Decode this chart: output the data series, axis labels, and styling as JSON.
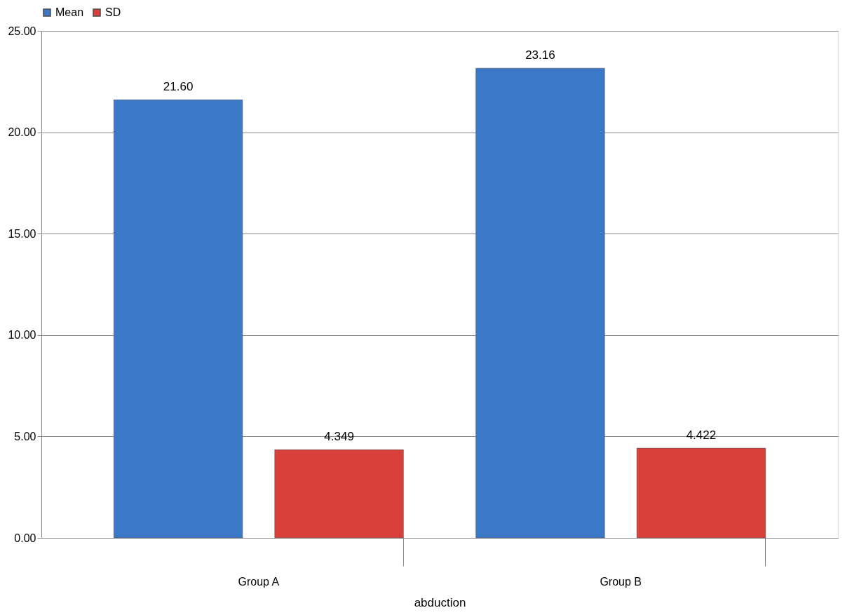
{
  "chart_data": {
    "type": "bar",
    "xlabel": "abduction",
    "categories": [
      "Group A",
      "Group B"
    ],
    "series": [
      {
        "name": "Mean",
        "color": "#3b78c8",
        "values": [
          21.6,
          23.16
        ],
        "value_labels": [
          "21.60",
          "23.16"
        ]
      },
      {
        "name": "SD",
        "color": "#d9403a",
        "values": [
          4.349,
          4.422
        ],
        "value_labels": [
          "4.349",
          "4.422"
        ]
      }
    ],
    "ylim": [
      0,
      25
    ],
    "yticks": [
      {
        "value": 0,
        "label": "0.00"
      },
      {
        "value": 5,
        "label": "5.00"
      },
      {
        "value": 10,
        "label": "10.00"
      },
      {
        "value": 15,
        "label": "15.00"
      },
      {
        "value": 20,
        "label": "20.00"
      },
      {
        "value": 25,
        "label": "25.00"
      }
    ],
    "grid": "y",
    "legend": "top"
  }
}
